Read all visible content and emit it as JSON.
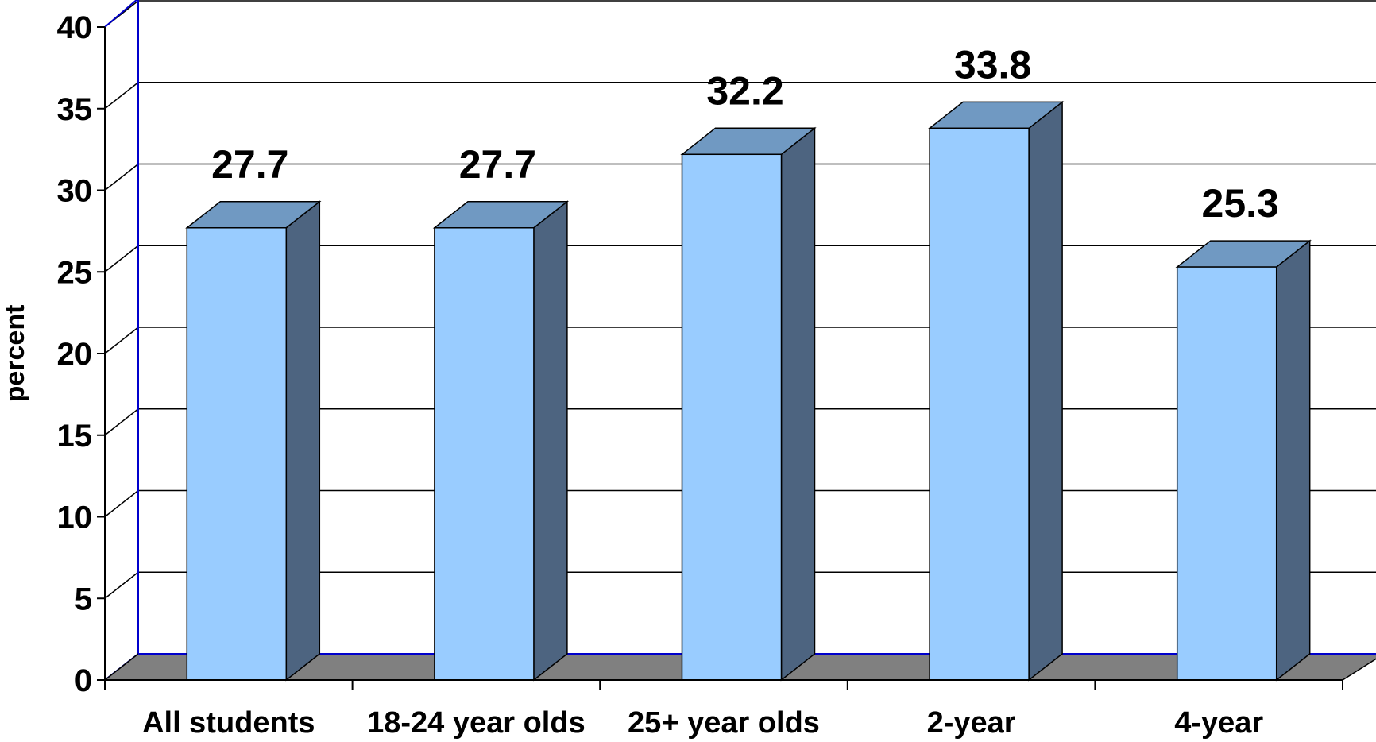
{
  "chart_data": {
    "type": "bar",
    "title": "",
    "xlabel": "",
    "ylabel": "percent",
    "ylim": [
      0,
      40
    ],
    "yticks": [
      "0",
      "5",
      "10",
      "15",
      "20",
      "25",
      "30",
      "35",
      "40"
    ],
    "categories": [
      "All students",
      "18-24 year olds",
      "25+ year olds",
      "2-year",
      "4-year"
    ],
    "values": [
      27.7,
      27.7,
      32.2,
      33.8,
      25.3
    ],
    "data_labels": [
      "27.7",
      "27.7",
      "32.2",
      "33.8",
      "25.3"
    ],
    "grid": true,
    "legend": "none",
    "colors": {
      "bar_front": "#99CCFF",
      "bar_top": "#7099C2",
      "bar_side": "#4D6480",
      "floor": "#808080",
      "wall_frame": "#0000CC",
      "gridline": "#000000"
    }
  }
}
